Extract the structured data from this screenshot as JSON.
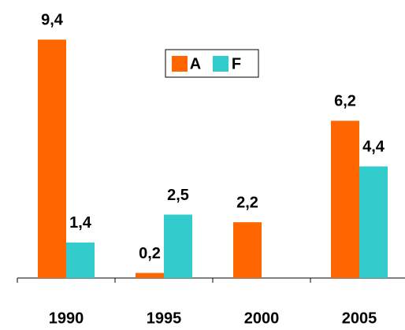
{
  "chart_data": {
    "type": "bar",
    "categories": [
      "1990",
      "1995",
      "2000",
      "2005"
    ],
    "series": [
      {
        "name": "A",
        "color": "#ff6600",
        "values": [
          9.4,
          0.2,
          2.2,
          6.2
        ],
        "value_labels": [
          "9,4",
          "0,2",
          "2,2",
          "6,2"
        ]
      },
      {
        "name": "F",
        "color": "#33cccc",
        "values": [
          1.4,
          2.5,
          null,
          4.4
        ],
        "value_labels": [
          "1,4",
          "2,5",
          null,
          "4,4"
        ]
      }
    ],
    "ylim": [
      0,
      10
    ]
  }
}
